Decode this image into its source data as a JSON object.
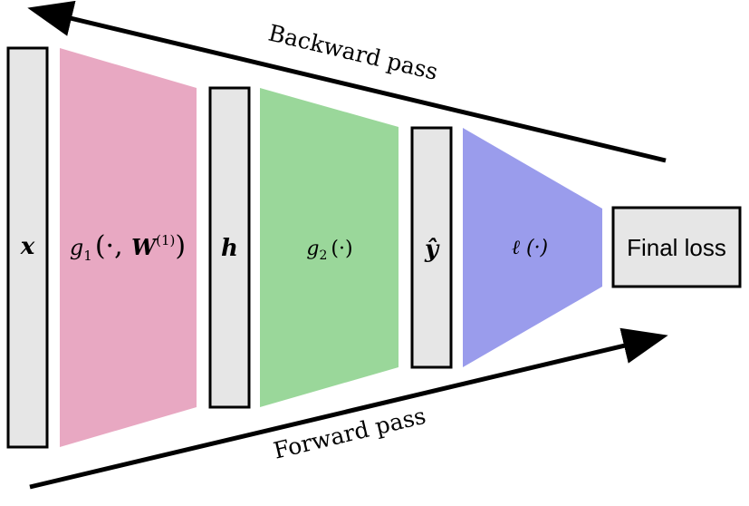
{
  "diagram": {
    "labels": {
      "x": "x",
      "g1_prefix": "g",
      "g1_sub": "1",
      "g1_args_a": "(·, ",
      "g1_W": "W",
      "g1_sup": "(1)",
      "g1_args_b": ")",
      "h": "h",
      "g2_prefix": "g",
      "g2_sub": "2",
      "g2_args": "(·)",
      "yhat": "ŷ",
      "loss_fn": "ℓ (·)",
      "final_loss": "Final loss"
    },
    "arrows": {
      "backward": "Backward pass",
      "forward": "Forward pass"
    },
    "colors": {
      "box_fill": "#e6e6e6",
      "g1_fill": "#e8a8c2",
      "g2_fill": "#9ad79a",
      "loss_fill": "#9a9cec",
      "stroke": "#000000"
    }
  }
}
